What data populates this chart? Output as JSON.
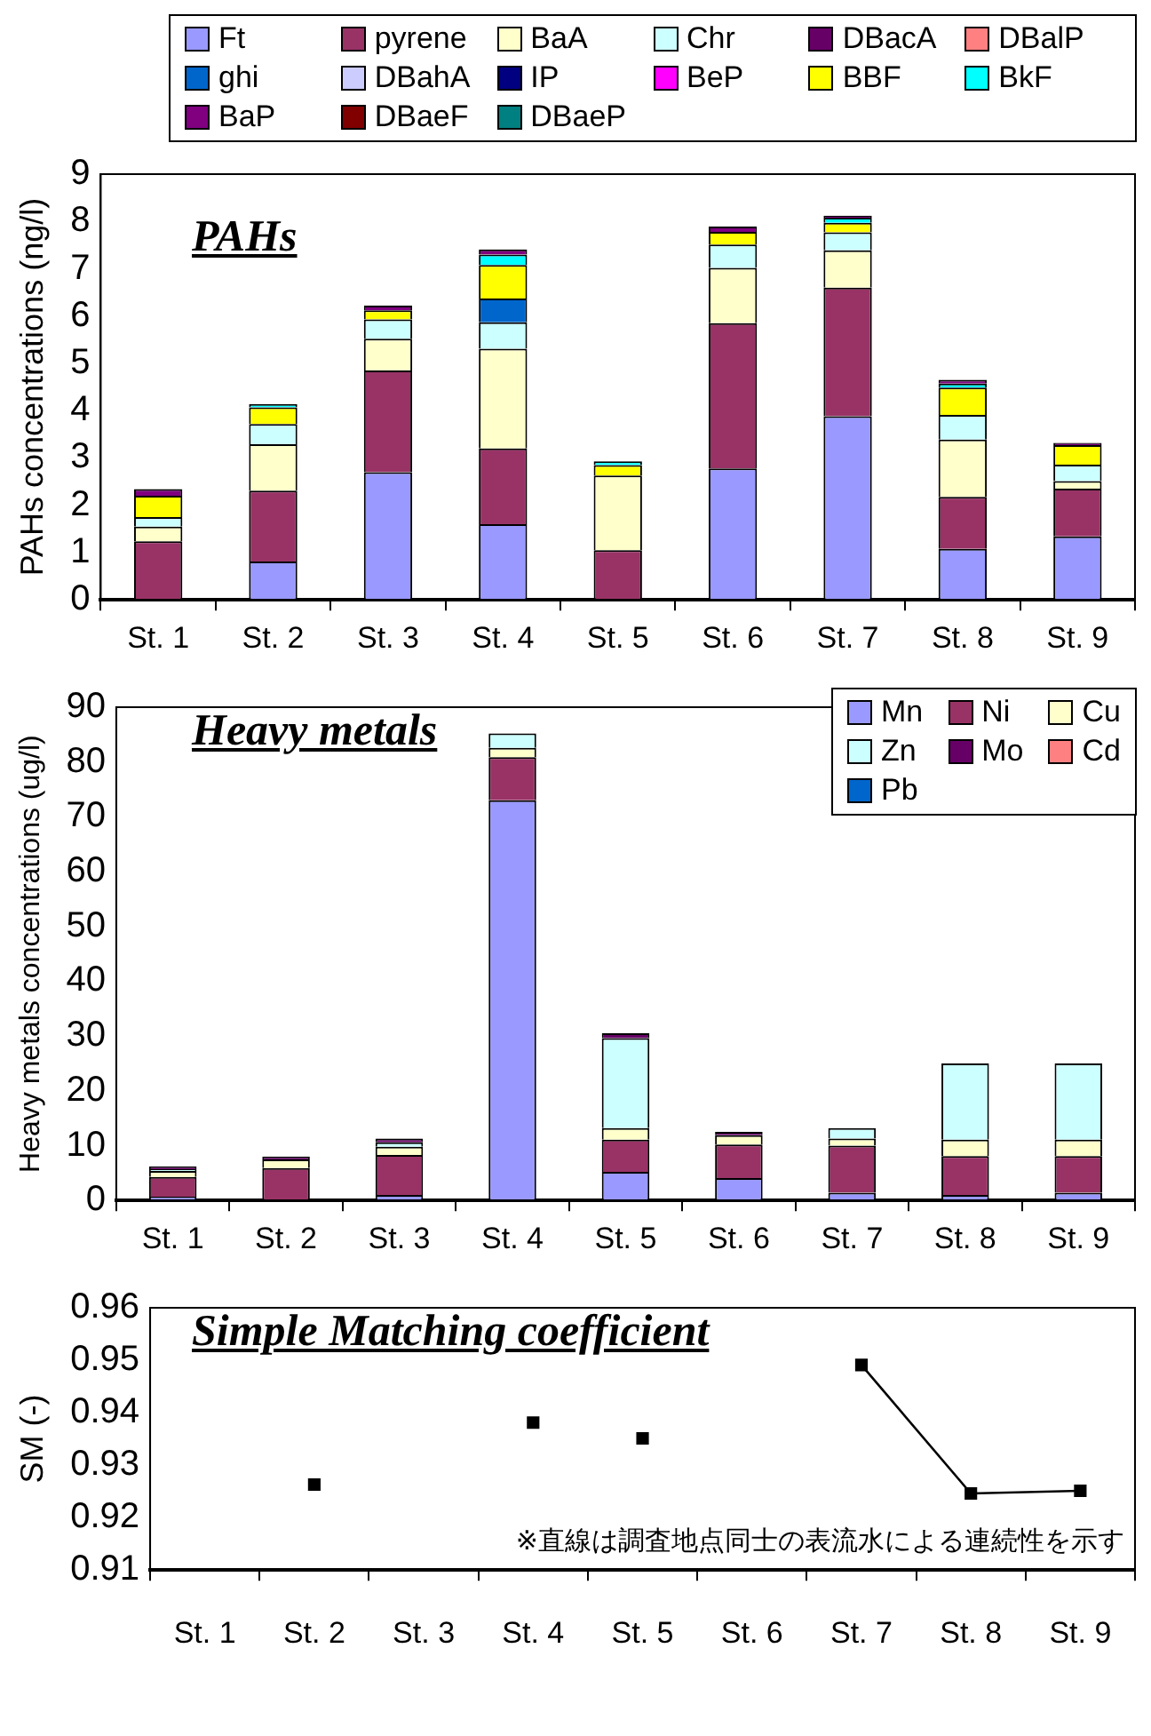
{
  "chart_data": [
    {
      "type": "bar",
      "title": "PAHs",
      "ylabel": "PAHs concentrations (ng/l)",
      "stacked": true,
      "legend": "top",
      "grid": false,
      "ylim": [
        0,
        9
      ],
      "yticks": [
        0,
        1,
        2,
        3,
        4,
        5,
        6,
        7,
        8,
        9
      ],
      "categories": [
        "St. 1",
        "St. 2",
        "St. 3",
        "St. 4",
        "St. 5",
        "St. 6",
        "St. 7",
        "St. 8",
        "St. 9"
      ],
      "series": [
        {
          "name": "Ft",
          "color": "#9999ff",
          "values": [
            null,
            0.81,
            2.7,
            1.6,
            null,
            2.78,
            3.88,
            1.08,
            1.34
          ]
        },
        {
          "name": "pyrene",
          "color": "#993366",
          "values": [
            1.24,
            1.5,
            2.15,
            1.6,
            1.05,
            3.07,
            2.72,
            1.1,
            1.01
          ]
        },
        {
          "name": "BaA",
          "color": "#ffffcc",
          "values": [
            0.31,
            0.98,
            0.67,
            2.11,
            1.58,
            1.17,
            0.79,
            1.21,
            0.16
          ]
        },
        {
          "name": "Chr",
          "color": "#ccffff",
          "values": [
            0.2,
            0.43,
            0.41,
            0.56,
            null,
            0.49,
            0.38,
            0.52,
            0.35
          ]
        },
        {
          "name": "DBacA",
          "color": "#660066",
          "values": [
            null,
            null,
            null,
            null,
            null,
            null,
            null,
            null,
            null
          ]
        },
        {
          "name": "DBalP",
          "color": "#ff8080",
          "values": [
            null,
            null,
            null,
            null,
            null,
            null,
            null,
            null,
            null
          ]
        },
        {
          "name": "ghi",
          "color": "#0066cc",
          "values": [
            null,
            null,
            null,
            0.5,
            null,
            null,
            null,
            null,
            null
          ]
        },
        {
          "name": "DBahA",
          "color": "#ccccff",
          "values": [
            null,
            null,
            null,
            null,
            null,
            null,
            null,
            null,
            null
          ]
        },
        {
          "name": "IP",
          "color": "#000080",
          "values": [
            null,
            null,
            null,
            null,
            null,
            null,
            null,
            null,
            null
          ]
        },
        {
          "name": "BeP",
          "color": "#ff00ff",
          "values": [
            null,
            null,
            null,
            null,
            null,
            null,
            null,
            null,
            null
          ]
        },
        {
          "name": "BBF",
          "color": "#ffff00",
          "values": [
            0.45,
            0.35,
            0.19,
            0.71,
            0.22,
            0.27,
            0.2,
            0.58,
            0.41
          ]
        },
        {
          "name": "BkF",
          "color": "#00ffff",
          "values": [
            null,
            0.07,
            null,
            0.22,
            0.08,
            null,
            0.11,
            0.08,
            null
          ]
        },
        {
          "name": "BaP",
          "color": "#800080",
          "values": [
            0.14,
            null,
            0.1,
            0.11,
            null,
            0.11,
            0.04,
            0.08,
            0.05
          ]
        },
        {
          "name": "DBaeF",
          "color": "#800000",
          "values": [
            null,
            null,
            null,
            null,
            null,
            null,
            null,
            null,
            null
          ]
        },
        {
          "name": "DBaeP",
          "color": "#008080",
          "values": [
            null,
            null,
            null,
            null,
            null,
            null,
            null,
            null,
            null
          ]
        }
      ]
    },
    {
      "type": "bar",
      "title": "Heavy metals",
      "ylabel": "Heavy metals concentrations (ug/l)",
      "stacked": true,
      "legend": "top right",
      "grid": false,
      "ylim": [
        0,
        90
      ],
      "yticks": [
        0,
        10,
        20,
        30,
        40,
        50,
        60,
        70,
        80,
        90
      ],
      "categories": [
        "St. 1",
        "St. 2",
        "St. 3",
        "St. 4",
        "St. 5",
        "St. 6",
        "St. 7",
        "St. 8",
        "St. 9"
      ],
      "series": [
        {
          "name": "Mn",
          "color": "#9999ff",
          "values": [
            0.7,
            null,
            1.0,
            73,
            5.2,
            4.1,
            1.4,
            1.0,
            1.4
          ]
        },
        {
          "name": "Ni",
          "color": "#993366",
          "values": [
            3.6,
            5.9,
            7.3,
            7.9,
            5.9,
            6.1,
            8.6,
            7.1,
            6.7
          ]
        },
        {
          "name": "Cu",
          "color": "#ffffcc",
          "values": [
            1.1,
            1.6,
            1.5,
            1.7,
            2.1,
            1.7,
            1.3,
            3.0,
            3.0
          ]
        },
        {
          "name": "Zn",
          "color": "#ccffff",
          "values": [
            0.3,
            null,
            0.8,
            2.6,
            16.4,
            null,
            1.9,
            13.9,
            13.9
          ]
        },
        {
          "name": "Mo",
          "color": "#660066",
          "values": [
            0.5,
            0.5,
            0.7,
            null,
            0.9,
            0.6,
            null,
            null,
            null
          ]
        },
        {
          "name": "Cd",
          "color": "#ff8080",
          "values": [
            null,
            null,
            null,
            null,
            null,
            null,
            null,
            null,
            null
          ]
        },
        {
          "name": "Pb",
          "color": "#0066cc",
          "values": [
            null,
            null,
            null,
            null,
            null,
            null,
            null,
            null,
            null
          ]
        }
      ]
    },
    {
      "type": "scatter",
      "title": "Simple Matching coefficient",
      "ylabel": "SM (-)",
      "grid": false,
      "marker": "square",
      "ylim": [
        0.91,
        0.96
      ],
      "yticks": [
        0.91,
        0.92,
        0.93,
        0.94,
        0.95,
        0.96
      ],
      "annotations": [
        "※直線は調査地点同士の表流水による連続性を示す"
      ],
      "categories": [
        "St. 1",
        "St. 2",
        "St. 3",
        "St. 4",
        "St. 5",
        "St. 6",
        "St. 7",
        "St. 8",
        "St. 9"
      ],
      "series": [
        {
          "type": "scatter",
          "color": "#000000",
          "values": [
            null,
            0.9263,
            null,
            0.9381,
            0.9351,
            null,
            null,
            null,
            null
          ]
        },
        {
          "type": "line",
          "color": "#000000",
          "values": [
            null,
            null,
            null,
            null,
            null,
            null,
            0.9491,
            0.9246,
            0.9251
          ]
        }
      ]
    }
  ]
}
